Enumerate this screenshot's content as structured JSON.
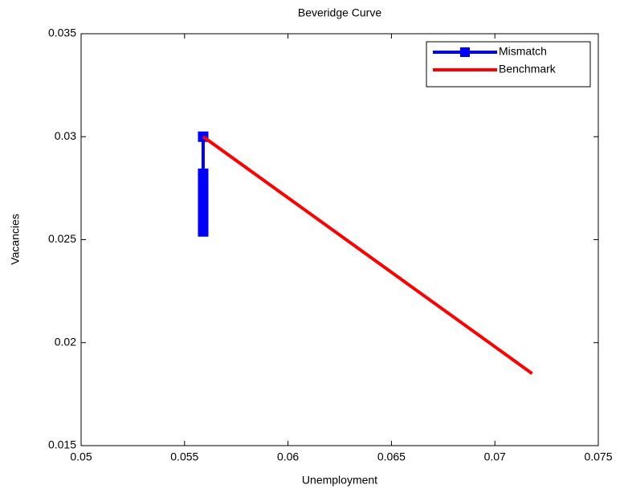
{
  "chart_data": {
    "type": "line",
    "title": "Beveridge Curve",
    "x_label": "Unemployment",
    "y_label": "Vacancies",
    "series": [
      {
        "name": "Mismatch",
        "color": "#0000ff",
        "marker": "square",
        "x": [
          0.0559,
          0.0559,
          0.0559,
          0.0559,
          0.0559,
          0.0559,
          0.0559,
          0.0559,
          0.0559,
          0.0559,
          0.0559,
          0.0559
        ],
        "values": [
          0.03,
          0.0282,
          0.0279,
          0.0276,
          0.0273,
          0.027,
          0.0267,
          0.0264,
          0.0261,
          0.0258,
          0.0256,
          0.0254
        ]
      },
      {
        "name": "Benchmark",
        "color": "#ff0000",
        "marker": null,
        "x": [
          0.0559,
          0.0718
        ],
        "values": [
          0.03,
          0.0185
        ]
      }
    ],
    "xlim": [
      0.05,
      0.075
    ],
    "xticks": [
      0.05,
      0.055,
      0.06,
      0.065,
      0.07,
      0.075
    ],
    "ylim": [
      0.015,
      0.035
    ],
    "yticks": [
      0.015,
      0.02,
      0.025,
      0.03,
      0.035
    ],
    "grid": false,
    "legend": "upper right"
  }
}
